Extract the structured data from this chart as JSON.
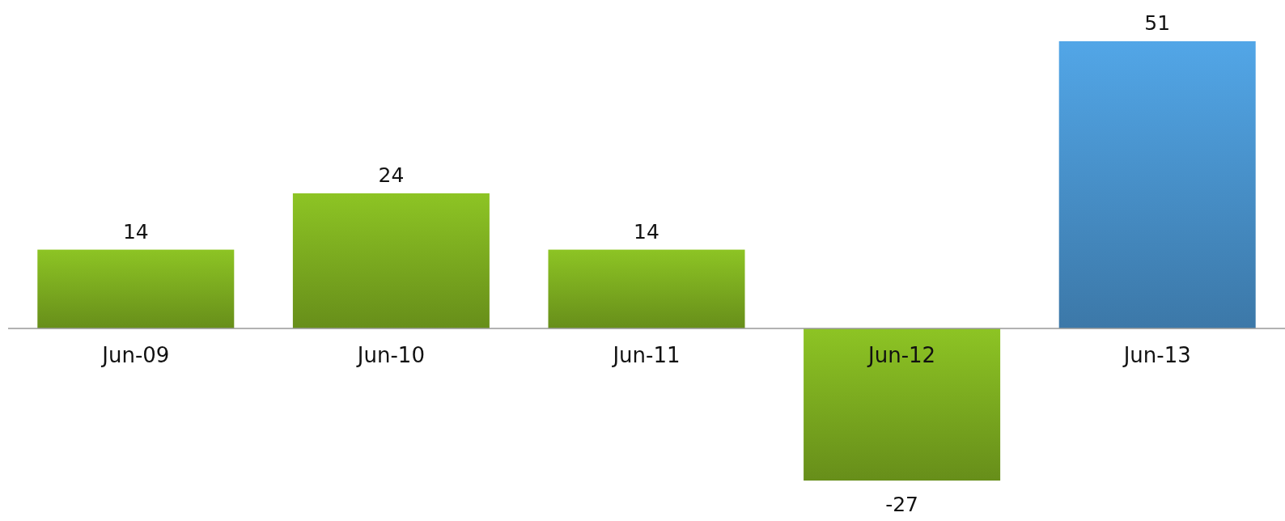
{
  "chart_data": {
    "type": "bar",
    "categories": [
      "Jun-09",
      "Jun-10",
      "Jun-11",
      "Jun-12",
      "Jun-13"
    ],
    "values": [
      14,
      24,
      14,
      -27,
      51
    ],
    "colors": [
      "#7fb020",
      "#7fb020",
      "#7fb020",
      "#7fb020",
      "#4a95d0"
    ],
    "data_labels": true
  }
}
